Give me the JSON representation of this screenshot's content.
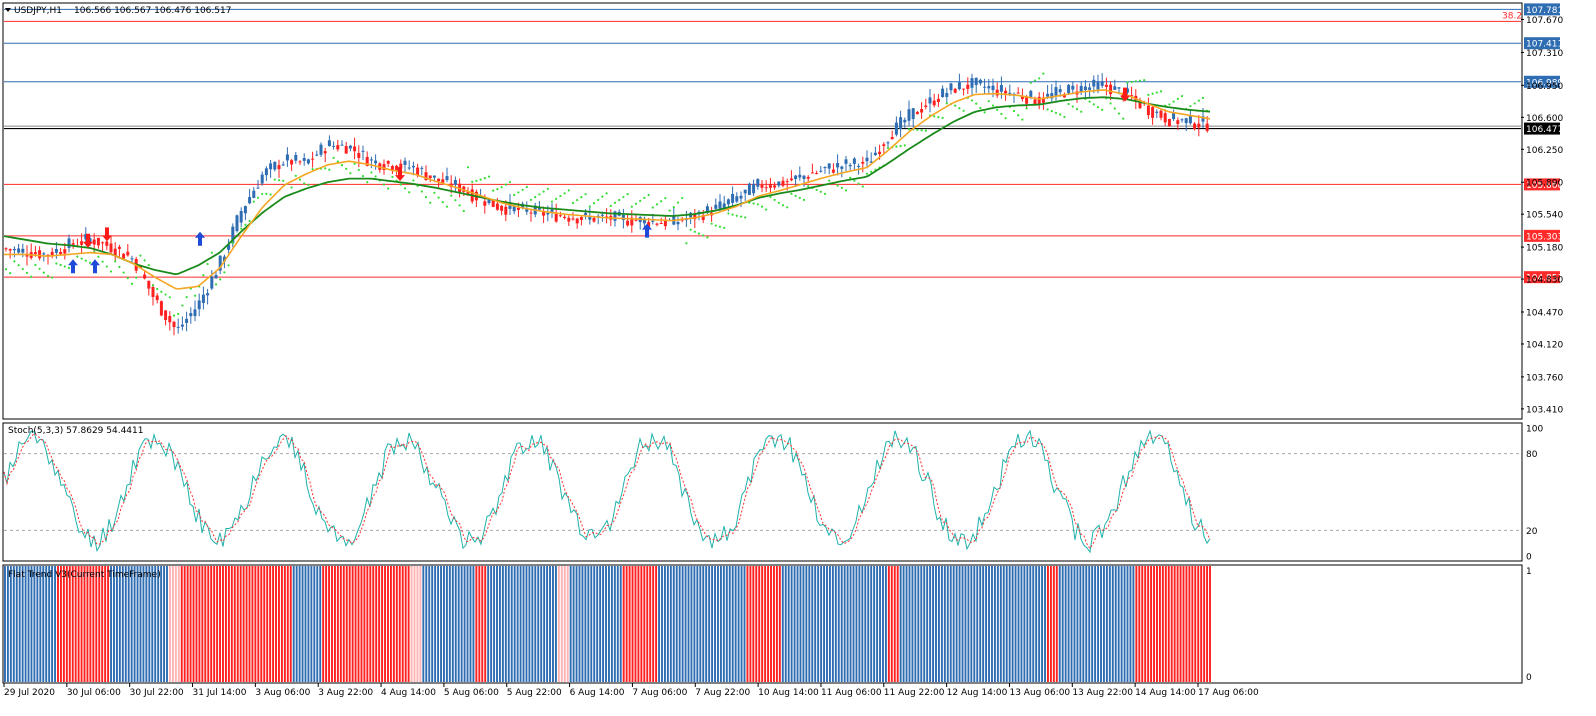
{
  "header": {
    "symbol": "USDJPY,H1",
    "ohlc": "106.566 106.567 106.476 106.517"
  },
  "chart_data": [
    {
      "type": "candlestick",
      "panel": "main",
      "ylim": [
        103.31,
        107.84
      ],
      "price_ticks": [
        "107.670",
        "107.310",
        "106.950",
        "106.600",
        "106.250",
        "105.890",
        "105.540",
        "105.180",
        "104.830",
        "104.470",
        "104.120",
        "103.760",
        "103.410"
      ],
      "horizontal_lines": [
        {
          "value": 107.781,
          "label": "107.781",
          "color": "#2f6db3"
        },
        {
          "value": 107.65,
          "label": "",
          "color": "#ff2a2a",
          "fib_label": "38.2"
        },
        {
          "value": 107.411,
          "label": "107.411",
          "color": "#2f6db3"
        },
        {
          "value": 106.989,
          "label": "106.989",
          "color": "#2f6db3"
        },
        {
          "value": 106.477,
          "label": "106.477",
          "color": "#000000",
          "current": true
        },
        {
          "value": 105.866,
          "label": "105.866",
          "color": "#ff2a2a"
        },
        {
          "value": 105.303,
          "label": "105.303",
          "color": "#ff2a2a"
        },
        {
          "value": 104.851,
          "label": "104.851",
          "color": "#ff2a2a"
        }
      ],
      "time_labels": [
        "29 Jul 2020",
        "30 Jul 06:00",
        "30 Jul 22:00",
        "31 Jul 14:00",
        "3 Aug 06:00",
        "3 Aug 22:00",
        "4 Aug 14:00",
        "5 Aug 06:00",
        "5 Aug 22:00",
        "6 Aug 14:00",
        "7 Aug 06:00",
        "7 Aug 22:00",
        "10 Aug 14:00",
        "11 Aug 06:00",
        "11 Aug 22:00",
        "12 Aug 14:00",
        "13 Aug 06:00",
        "13 Aug 22:00",
        "14 Aug 14:00",
        "17 Aug 06:00"
      ],
      "close_path": [
        105.16,
        105.13,
        105.1,
        105.2,
        105.27,
        105.18,
        105.05,
        104.6,
        104.26,
        104.55,
        105.0,
        105.58,
        105.98,
        106.13,
        106.1,
        106.3,
        106.28,
        106.12,
        106.08,
        106.05,
        105.92,
        105.85,
        105.72,
        105.62,
        105.58,
        105.55,
        105.52,
        105.5,
        105.5,
        105.48,
        105.46,
        105.45,
        105.52,
        105.6,
        105.72,
        105.86,
        105.88,
        105.95,
        106.03,
        106.08,
        106.1,
        106.4,
        106.62,
        106.78,
        106.92,
        106.96,
        106.9,
        106.85,
        106.79,
        106.88,
        106.92,
        106.95,
        106.85,
        106.7,
        106.58,
        106.55,
        106.52
      ],
      "ma_fast": [
        105.1,
        105.1,
        105.08,
        105.1,
        105.12,
        105.1,
        105.0,
        104.85,
        104.72,
        104.75,
        104.95,
        105.3,
        105.62,
        105.86,
        105.98,
        106.08,
        106.12,
        106.08,
        106.02,
        105.98,
        105.9,
        105.83,
        105.75,
        105.67,
        105.61,
        105.57,
        105.54,
        105.52,
        105.5,
        105.49,
        105.48,
        105.47,
        105.5,
        105.55,
        105.63,
        105.74,
        105.8,
        105.87,
        105.94,
        106.0,
        106.05,
        106.24,
        106.45,
        106.62,
        106.76,
        106.85,
        106.86,
        106.84,
        106.8,
        106.84,
        106.88,
        106.9,
        106.85,
        106.75,
        106.66,
        106.62,
        106.58
      ],
      "ma_slow": [
        105.3,
        105.26,
        105.22,
        105.2,
        105.17,
        105.1,
        105.0,
        104.93,
        104.88,
        104.98,
        105.12,
        105.35,
        105.56,
        105.73,
        105.82,
        105.89,
        105.93,
        105.93,
        105.9,
        105.87,
        105.83,
        105.78,
        105.73,
        105.68,
        105.64,
        105.61,
        105.59,
        105.57,
        105.55,
        105.54,
        105.53,
        105.52,
        105.54,
        105.58,
        105.64,
        105.72,
        105.77,
        105.81,
        105.86,
        105.91,
        105.95,
        106.1,
        106.26,
        106.41,
        106.55,
        106.66,
        106.71,
        106.73,
        106.74,
        106.78,
        106.81,
        106.82,
        106.8,
        106.75,
        106.71,
        106.68,
        106.66
      ],
      "arrows_buy": [
        [
          73,
          104.96
        ],
        [
          95,
          104.96
        ],
        [
          200,
          105.26
        ],
        [
          647,
          105.35
        ]
      ],
      "arrows_sell": [
        [
          88,
          105.26
        ],
        [
          107,
          105.33
        ],
        [
          400,
          105.99
        ],
        [
          1125,
          106.86
        ]
      ],
      "legend": []
    },
    {
      "type": "line",
      "panel": "stochastic",
      "title": "Stoch(5,3,3) 57.8629 54.4411",
      "ylim": [
        0,
        100
      ],
      "ticks": [
        "100",
        "80",
        "20",
        "0"
      ],
      "levels": [
        80,
        20
      ],
      "main_line_color": "#20b2aa",
      "signal_line_color": "#ff3030"
    },
    {
      "type": "bar",
      "panel": "flat-trend",
      "title": "Flat Trend V3(Current TimeFrame)",
      "ylim": [
        0,
        1
      ],
      "ticks": [
        "1",
        "0"
      ],
      "segments": [
        {
          "state": "up",
          "count": 18
        },
        {
          "state": "down",
          "count": 18
        },
        {
          "state": "up",
          "count": 20
        },
        {
          "state": "flat",
          "count": 4
        },
        {
          "state": "down",
          "count": 38
        },
        {
          "state": "up",
          "count": 10
        },
        {
          "state": "down",
          "count": 30
        },
        {
          "state": "flat",
          "count": 4
        },
        {
          "state": "up",
          "count": 18
        },
        {
          "state": "down",
          "count": 4
        },
        {
          "state": "up",
          "count": 24
        },
        {
          "state": "flat",
          "count": 4
        },
        {
          "state": "up",
          "count": 18
        },
        {
          "state": "down",
          "count": 12
        },
        {
          "state": "up",
          "count": 30
        },
        {
          "state": "down",
          "count": 12
        },
        {
          "state": "up",
          "count": 36
        },
        {
          "state": "down",
          "count": 4
        },
        {
          "state": "up",
          "count": 50
        },
        {
          "state": "down",
          "count": 4
        },
        {
          "state": "up",
          "count": 26
        },
        {
          "state": "down",
          "count": 26
        }
      ],
      "colors": {
        "up": "#2f6db3",
        "down": "#ff2020",
        "flat": "#ffb3b3"
      }
    }
  ]
}
